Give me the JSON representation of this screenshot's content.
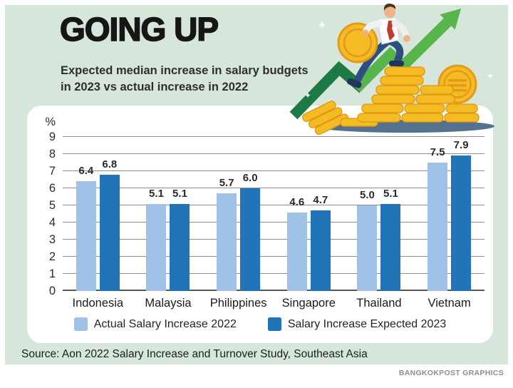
{
  "page": {
    "background_color": "#d7e6da",
    "panel_color": "#ffffff"
  },
  "header": {
    "title": "GOING UP",
    "subtitle_line1": "Expected median increase in salary budgets",
    "subtitle_line2": "in 2023 vs actual increase in 2022"
  },
  "chart_data": {
    "type": "bar",
    "title": "GOING UP",
    "unit_label": "%",
    "categories": [
      "Indonesia",
      "Malaysia",
      "Philippines",
      "Singapore",
      "Thailand",
      "Vietnam"
    ],
    "series": [
      {
        "name": "Actual Salary Increase 2022",
        "color": "#9fc2e6",
        "values": [
          6.4,
          5.1,
          5.7,
          4.6,
          5.0,
          7.5
        ]
      },
      {
        "name": "Salary Increase Expected 2023",
        "color": "#2274b9",
        "values": [
          6.8,
          5.1,
          6.0,
          4.7,
          5.1,
          7.9
        ]
      }
    ],
    "ylim": [
      0,
      9
    ],
    "y_ticks": [
      9,
      8,
      7,
      6,
      5,
      4,
      3,
      2,
      1,
      0
    ],
    "grid": true,
    "legend_position": "bottom",
    "value_labels_decimals": 1
  },
  "footer": {
    "source": "Source: Aon 2022 Salary Increase and Turnover Study, Southeast Asia",
    "credit": "BANGKOKPOST GRAPHICS"
  },
  "illustration": {
    "name": "man-carrying-coin-up-coin-stacks-with-rising-arrow",
    "arrow_color_dark": "#1e7a45",
    "arrow_color_bright": "#57b54b",
    "coin_color": "#f5bb22",
    "coin_edge_color": "#dd9715",
    "shadow_color": "#54718d"
  }
}
